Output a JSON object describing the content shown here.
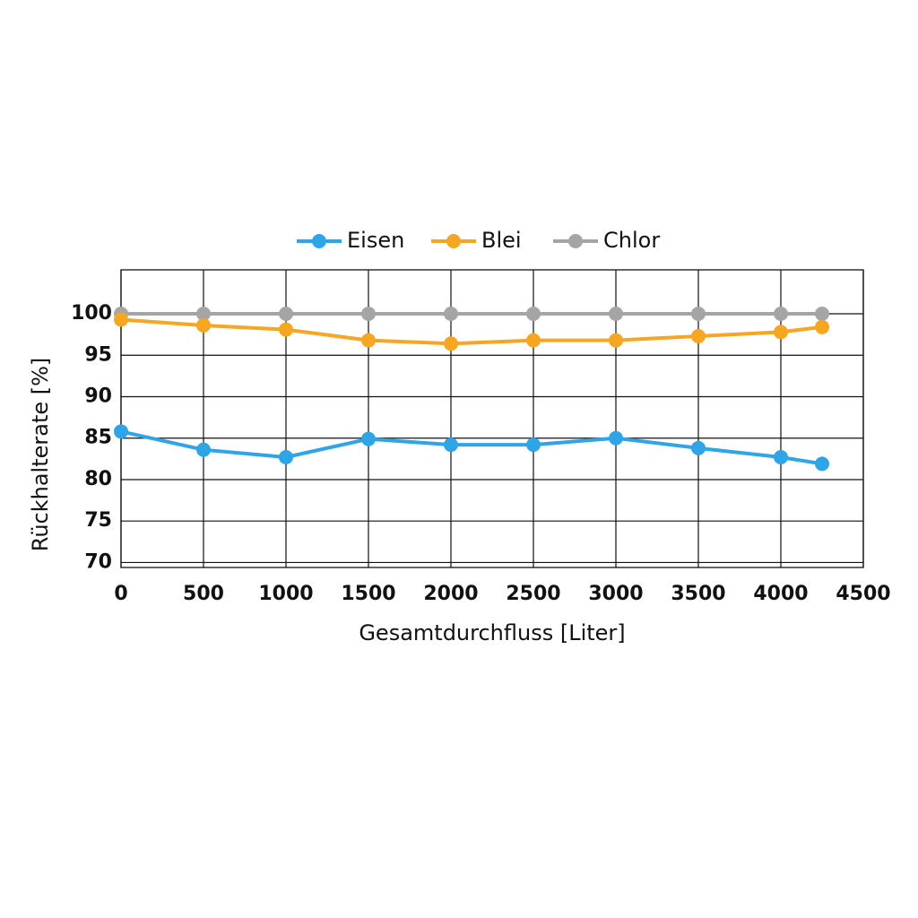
{
  "chart_data": {
    "type": "line",
    "x_label": "Gesamtdurchfluss [Liter]",
    "y_label": "Rückhalterate [%]",
    "x": [
      0,
      500,
      1000,
      1500,
      2000,
      2500,
      3000,
      3500,
      4000,
      4250
    ],
    "series": [
      {
        "name": "Eisen",
        "color": "#2fa4e7",
        "values": [
          85.8,
          83.6,
          82.7,
          84.9,
          84.2,
          84.2,
          85.0,
          83.8,
          82.7,
          81.9
        ]
      },
      {
        "name": "Blei",
        "color": "#f5a623",
        "values": [
          99.3,
          98.6,
          98.1,
          96.8,
          96.4,
          96.8,
          96.8,
          97.3,
          97.8,
          98.4
        ]
      },
      {
        "name": "Chlor",
        "color": "#a5a5a5",
        "values": [
          100,
          100,
          100,
          100,
          100,
          100,
          100,
          100,
          100,
          100
        ]
      }
    ],
    "xlim": [
      0,
      4500
    ],
    "xticks": [
      0,
      500,
      1000,
      1500,
      2000,
      2500,
      3000,
      3500,
      4000,
      4500
    ],
    "ylim": [
      69.4,
      105.3
    ],
    "yticks": [
      70,
      75,
      80,
      85,
      90,
      95,
      100
    ],
    "grid": true,
    "legend": "top"
  }
}
